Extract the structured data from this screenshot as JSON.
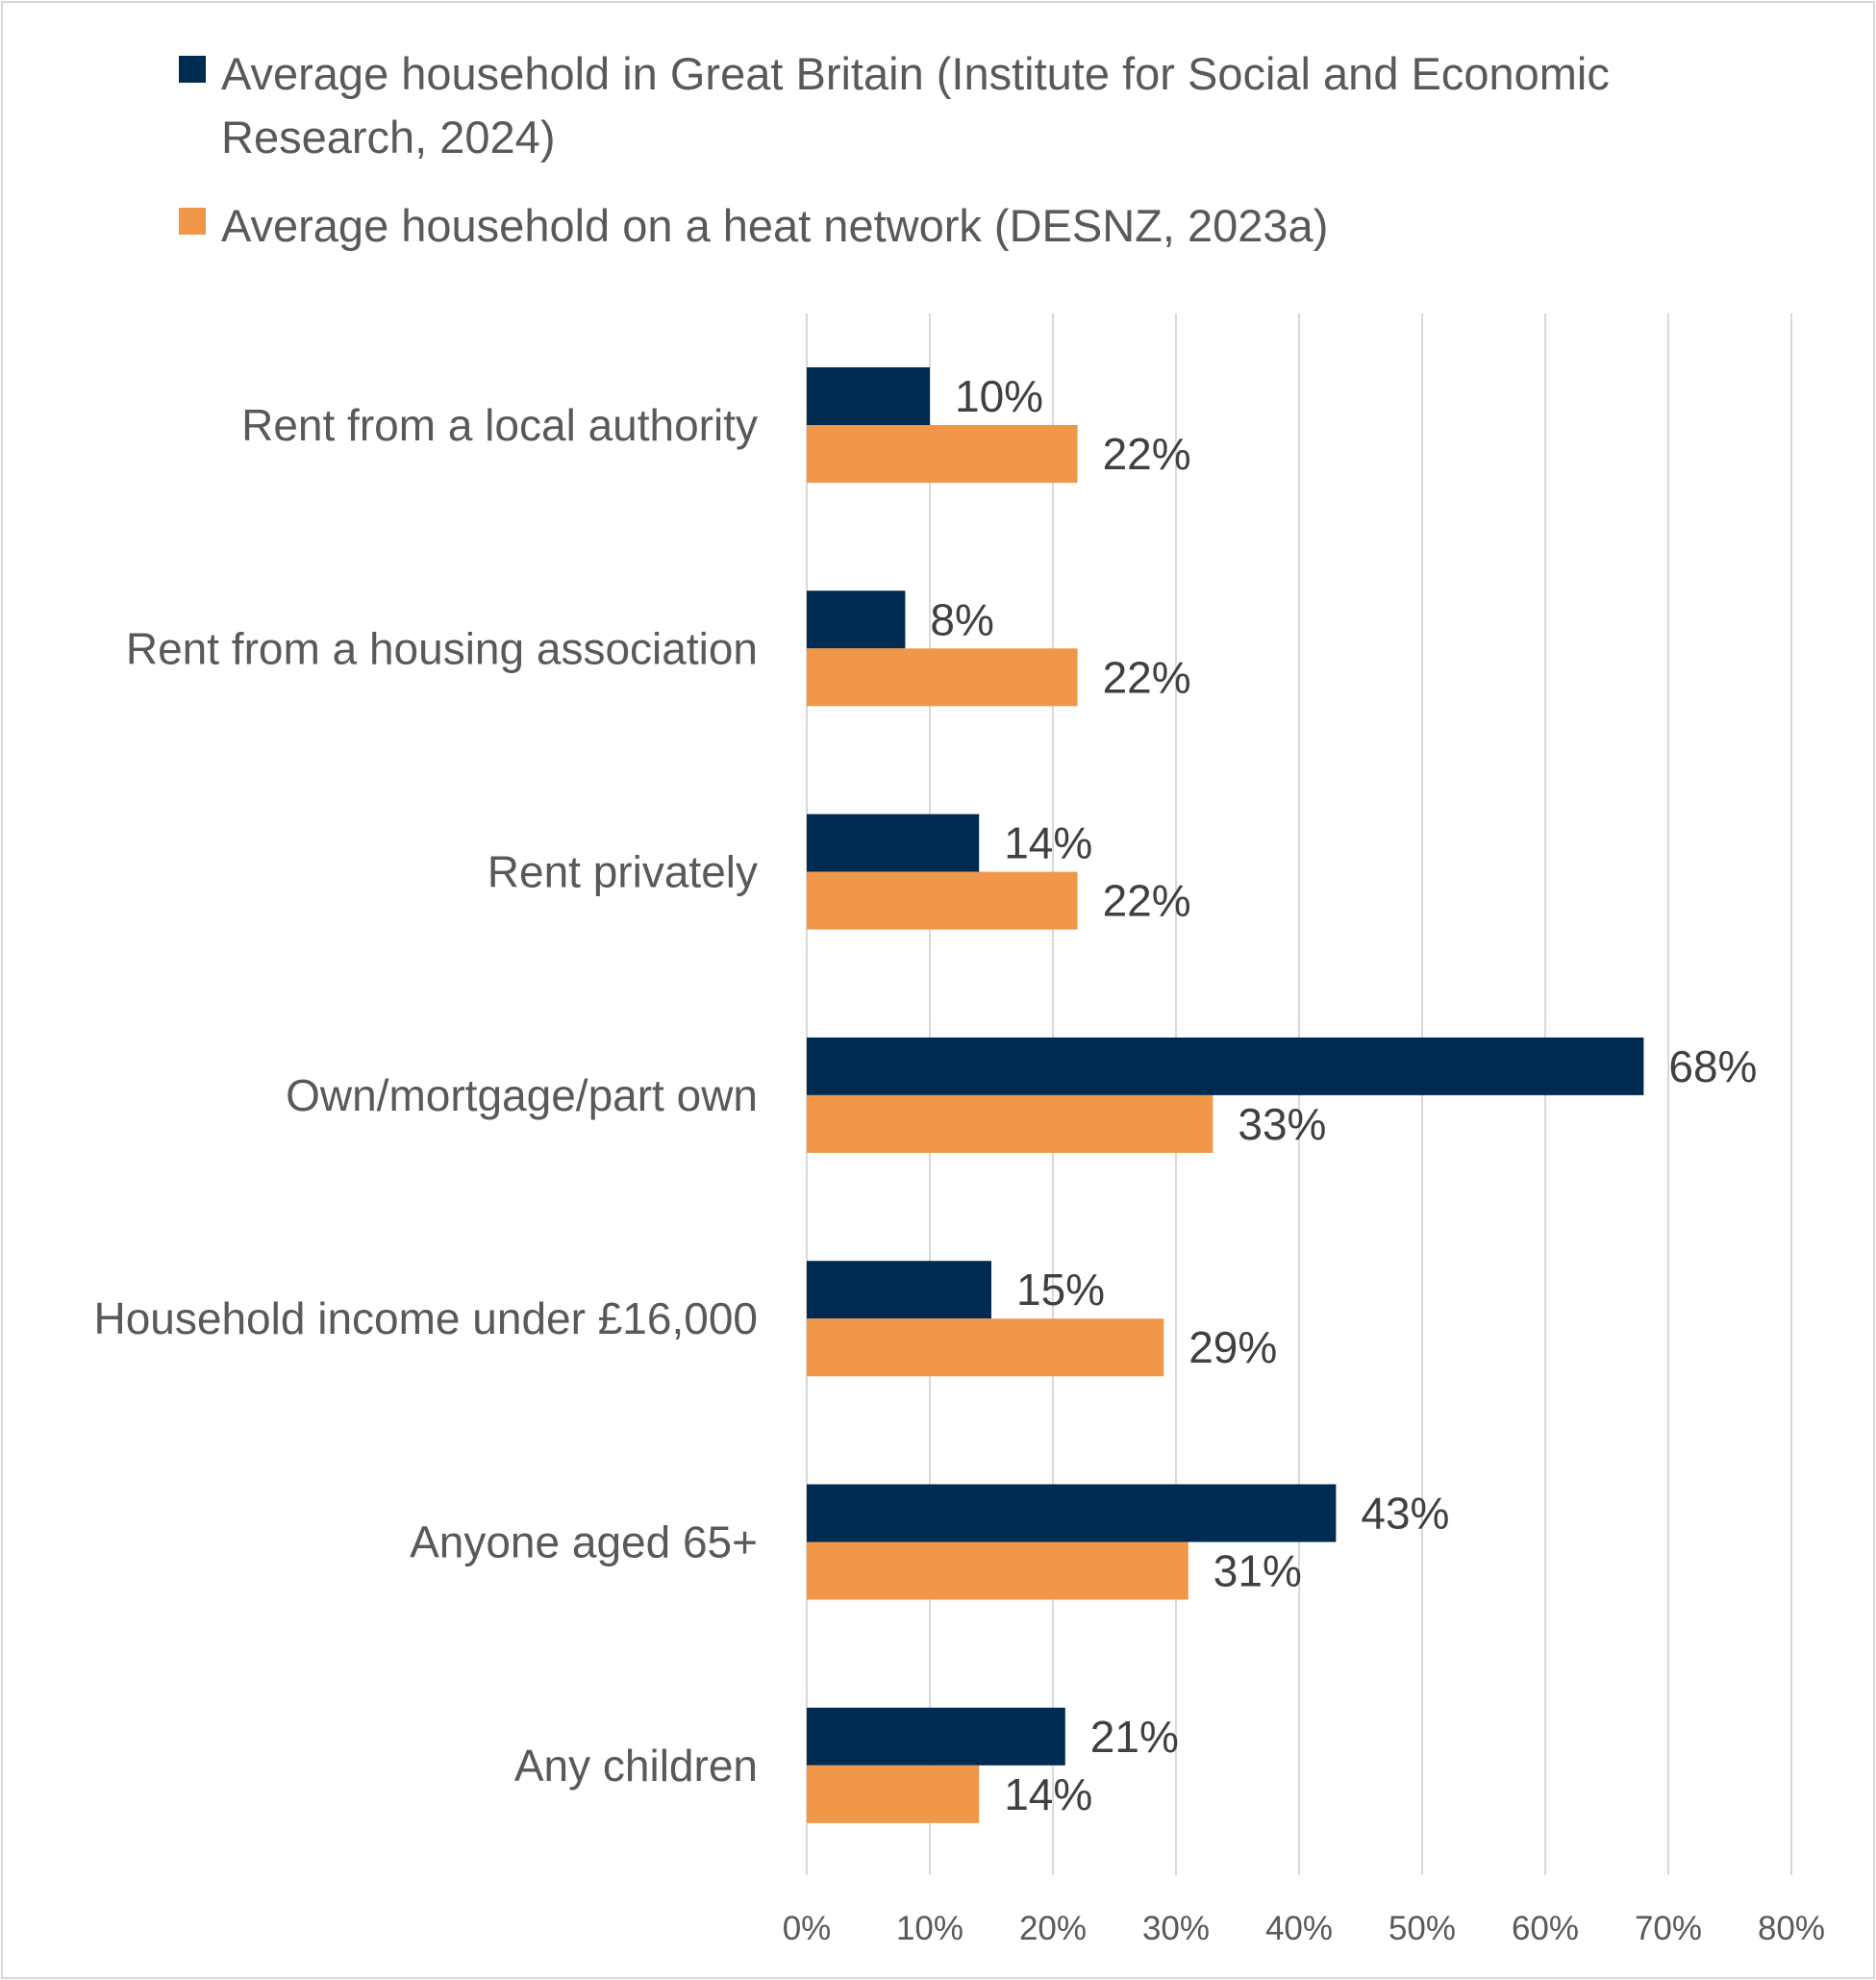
{
  "chart_data": {
    "type": "bar",
    "orientation": "horizontal",
    "categories": [
      "Rent from a local authority",
      "Rent from a housing association",
      "Rent privately",
      "Own/mortgage/part own",
      "Household income under £16,000",
      "Anyone aged 65+",
      "Any children"
    ],
    "series": [
      {
        "name": "Average household in Great Britain (Institute for Social and Economic Research, 2024)",
        "color": "#002B50",
        "values": [
          10,
          8,
          14,
          68,
          15,
          43,
          21
        ],
        "labels": [
          "10%",
          "8%",
          "14%",
          "68%",
          "15%",
          "43%",
          "21%"
        ]
      },
      {
        "name": "Average household on a heat network (DESNZ, 2023a)",
        "color": "#F0974A",
        "values": [
          22,
          22,
          22,
          33,
          29,
          31,
          14
        ],
        "labels": [
          "22%",
          "22%",
          "22%",
          "33%",
          "29%",
          "31%",
          "14%"
        ]
      }
    ],
    "xlim": [
      0,
      80
    ],
    "xticks": [
      "0%",
      "10%",
      "20%",
      "30%",
      "40%",
      "50%",
      "60%",
      "70%",
      "80%"
    ],
    "grid": true,
    "legend_position": "top"
  }
}
